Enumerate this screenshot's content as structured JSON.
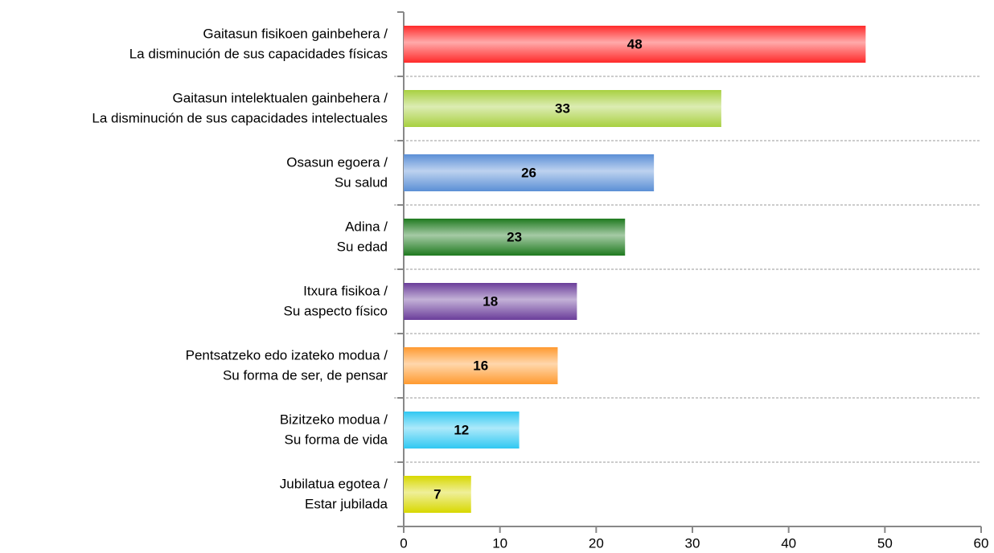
{
  "chart_data": {
    "type": "bar",
    "orientation": "horizontal",
    "categories": [
      [
        "Gaitasun fisikoen gainbehera /",
        "La disminución de sus capacidades físicas"
      ],
      [
        "Gaitasun intelektualen gainbehera /",
        "La disminución de sus capacidades intelectuales"
      ],
      [
        "Osasun egoera /",
        "Su salud"
      ],
      [
        "Adina /",
        "Su edad"
      ],
      [
        "Itxura fisikoa /",
        "Su aspecto físico"
      ],
      [
        "Pentsatzeko edo izateko modua /",
        "Su forma de ser, de pensar"
      ],
      [
        "Bizitzeko modua /",
        "Su forma de vida"
      ],
      [
        "Jubilatua egotea /",
        "Estar jubilada"
      ]
    ],
    "values": [
      48,
      33,
      26,
      23,
      18,
      16,
      12,
      7
    ],
    "colors": [
      "#ff2a2a",
      "#a8d040",
      "#5b8fd6",
      "#1f7a1f",
      "#6a3d9a",
      "#ff9a30",
      "#30c8f2",
      "#d8d800"
    ],
    "xlim": [
      0,
      60
    ],
    "xticks": [
      0,
      10,
      20,
      30,
      40,
      50,
      60
    ]
  }
}
